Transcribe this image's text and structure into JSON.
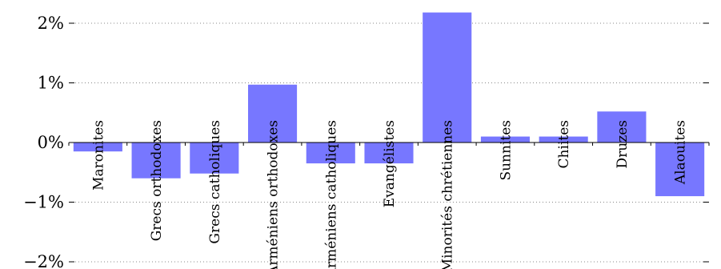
{
  "chart_data": {
    "type": "bar",
    "title": "",
    "xlabel": "",
    "ylabel": "",
    "categories": [
      "Maronites",
      "Grecs orthodoxes",
      "Grecs catholiques",
      "Arméniens orthodoxes",
      "Arméniens catholiques",
      "Evangélistes",
      "Minorités chrétiennes",
      "Sunnites",
      "Chiites",
      "Druzes",
      "Alaouites"
    ],
    "values": [
      -0.15,
      -0.6,
      -0.52,
      0.97,
      -0.35,
      -0.35,
      2.18,
      0.1,
      0.1,
      0.52,
      -0.9
    ],
    "ylim": [
      -2,
      2.2
    ],
    "yticks": [
      -2,
      -1,
      0,
      1,
      2
    ],
    "ytick_labels": [
      "−2%",
      "−1%",
      "0%",
      "1%",
      "2%"
    ],
    "bar_color": "#7777ff",
    "grid": true
  }
}
